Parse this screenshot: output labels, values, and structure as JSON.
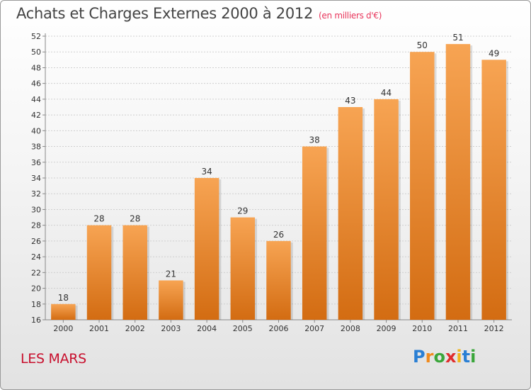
{
  "header": {
    "title": "Achats et Charges Externes 2000 à 2012",
    "subtitle": "(en milliers d'€)"
  },
  "footer": {
    "commune": "LES MARS",
    "logo_letters": [
      {
        "ch": "P",
        "color": "#2a7fd4"
      },
      {
        "ch": "r",
        "color": "#f08a1c"
      },
      {
        "ch": "o",
        "color": "#3aa63a"
      },
      {
        "ch": "x",
        "color": "#e02d2d"
      },
      {
        "ch": "i",
        "color": "#f0b41c"
      },
      {
        "ch": "t",
        "color": "#2a7fd4"
      },
      {
        "ch": "i",
        "color": "#3aa63a"
      }
    ]
  },
  "chart_data": {
    "type": "bar",
    "categories": [
      "2000",
      "2001",
      "2002",
      "2003",
      "2004",
      "2005",
      "2006",
      "2007",
      "2008",
      "2009",
      "2010",
      "2011",
      "2012"
    ],
    "values": [
      18,
      28,
      28,
      21,
      34,
      29,
      26,
      38,
      43,
      44,
      50,
      51,
      49
    ],
    "ylim": [
      16,
      52
    ],
    "ytick_step": 2,
    "grid": true,
    "bar_color_top": "#f7a453",
    "bar_color_bottom": "#d36c12"
  }
}
